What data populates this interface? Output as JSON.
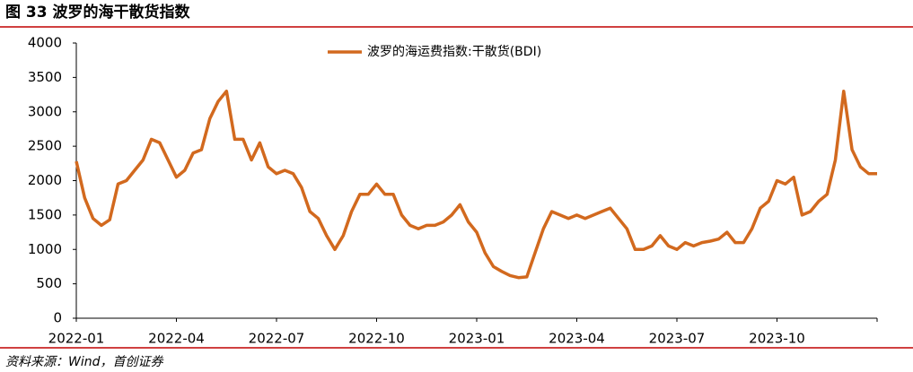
{
  "chart_data": {
    "type": "line",
    "title": "图 33 波罗的海干散货指数",
    "source": "资料来源：Wind，首创证券",
    "categories": [
      "2022-01",
      null,
      null,
      null,
      null,
      null,
      null,
      null,
      null,
      null,
      null,
      null,
      "2022-04",
      null,
      null,
      null,
      null,
      null,
      null,
      null,
      null,
      null,
      null,
      null,
      "2022-07",
      null,
      null,
      null,
      null,
      null,
      null,
      null,
      null,
      null,
      null,
      null,
      "2022-10",
      null,
      null,
      null,
      null,
      null,
      null,
      null,
      null,
      null,
      null,
      null,
      "2023-01",
      null,
      null,
      null,
      null,
      null,
      null,
      null,
      null,
      null,
      null,
      null,
      "2023-04",
      null,
      null,
      null,
      null,
      null,
      null,
      null,
      null,
      null,
      null,
      null,
      "2023-07",
      null,
      null,
      null,
      null,
      null,
      null,
      null,
      null,
      null,
      null,
      null,
      "2023-10",
      null,
      null,
      null,
      null,
      null,
      null,
      null,
      null,
      null,
      null,
      null,
      null
    ],
    "series": [
      {
        "name": "波罗的海运费指数:干散货(BDI)",
        "color": "#d2691e",
        "values": [
          2280,
          1750,
          1450,
          1350,
          1430,
          1950,
          2000,
          2150,
          2300,
          2600,
          2550,
          2300,
          2050,
          2150,
          2400,
          2450,
          2900,
          3150,
          3300,
          2600,
          2600,
          2300,
          2550,
          2200,
          2100,
          2150,
          2100,
          1900,
          1550,
          1450,
          1200,
          1000,
          1200,
          1550,
          1800,
          1800,
          1950,
          1800,
          1800,
          1500,
          1350,
          1300,
          1350,
          1350,
          1400,
          1500,
          1650,
          1400,
          1250,
          950,
          750,
          680,
          620,
          590,
          600,
          950,
          1300,
          1550,
          1500,
          1450,
          1500,
          1450,
          1500,
          1550,
          1600,
          1450,
          1300,
          1000,
          1000,
          1050,
          1200,
          1050,
          1000,
          1100,
          1050,
          1100,
          1120,
          1150,
          1250,
          1100,
          1100,
          1300,
          1600,
          1700,
          2000,
          1950,
          2050,
          1500,
          1550,
          1700,
          1800,
          2300,
          3300,
          2450,
          2200,
          2100,
          2100
        ]
      }
    ],
    "ylim": [
      0,
      4000
    ],
    "yticks": [
      0,
      500,
      1000,
      1500,
      2000,
      2500,
      3000,
      3500,
      4000
    ]
  }
}
